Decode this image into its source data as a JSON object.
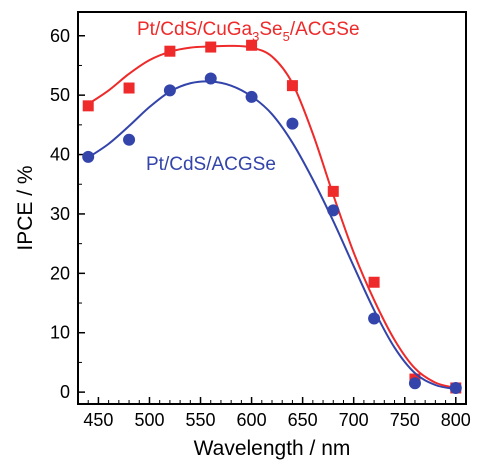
{
  "chart_data": {
    "type": "scatter",
    "xlabel": "Wavelength / nm",
    "ylabel": "IPCE / %",
    "xlim": [
      430,
      810
    ],
    "ylim": [
      -2,
      64
    ],
    "xticks": [
      450,
      500,
      550,
      600,
      650,
      700,
      750,
      800
    ],
    "yticks": [
      0,
      10,
      20,
      30,
      40,
      50,
      60
    ],
    "grid": false,
    "legend": "inline-labels",
    "series": [
      {
        "name": "Pt/CdS/CuGa3Se5/ACGSe",
        "label_parts": {
          "a": "Pt/CdS/CuGa",
          "s1": "3",
          "b": "Se",
          "s2": "5",
          "c": "/ACGSe"
        },
        "color": "#ee2a2a",
        "marker": "square",
        "x": [
          440,
          480,
          520,
          560,
          600,
          640,
          680,
          720,
          760,
          800
        ],
        "y": [
          48.2,
          51.2,
          57.4,
          58.1,
          58.4,
          51.6,
          33.8,
          18.5,
          2.2,
          0.7
        ],
        "fit_x": [
          440,
          460,
          480,
          500,
          520,
          540,
          560,
          580,
          600,
          620,
          640,
          660,
          680,
          700,
          720,
          740,
          760,
          780,
          800
        ],
        "fit_y": [
          48.5,
          50.8,
          53.6,
          55.9,
          57.3,
          58.0,
          58.2,
          58.3,
          58.0,
          56.5,
          52.0,
          43.5,
          33.2,
          23.5,
          15.5,
          8.8,
          4.0,
          1.6,
          0.7
        ]
      },
      {
        "name": "Pt/CdS/ACGSe",
        "label_parts": {
          "a": "Pt/CdS/ACGSe"
        },
        "color": "#3344aa",
        "marker": "circle",
        "x": [
          440,
          480,
          520,
          560,
          600,
          640,
          680,
          720,
          760,
          800
        ],
        "y": [
          39.6,
          42.5,
          50.8,
          52.8,
          49.7,
          45.2,
          30.6,
          12.4,
          1.5,
          0.7
        ],
        "fit_x": [
          440,
          460,
          480,
          500,
          520,
          540,
          560,
          580,
          600,
          620,
          640,
          660,
          680,
          700,
          720,
          740,
          760,
          780,
          800
        ],
        "fit_y": [
          39.5,
          41.8,
          44.8,
          48.0,
          50.6,
          52.0,
          52.3,
          51.6,
          49.8,
          46.8,
          42.0,
          35.8,
          28.8,
          21.2,
          13.8,
          7.5,
          3.2,
          1.2,
          0.5
        ]
      }
    ]
  }
}
